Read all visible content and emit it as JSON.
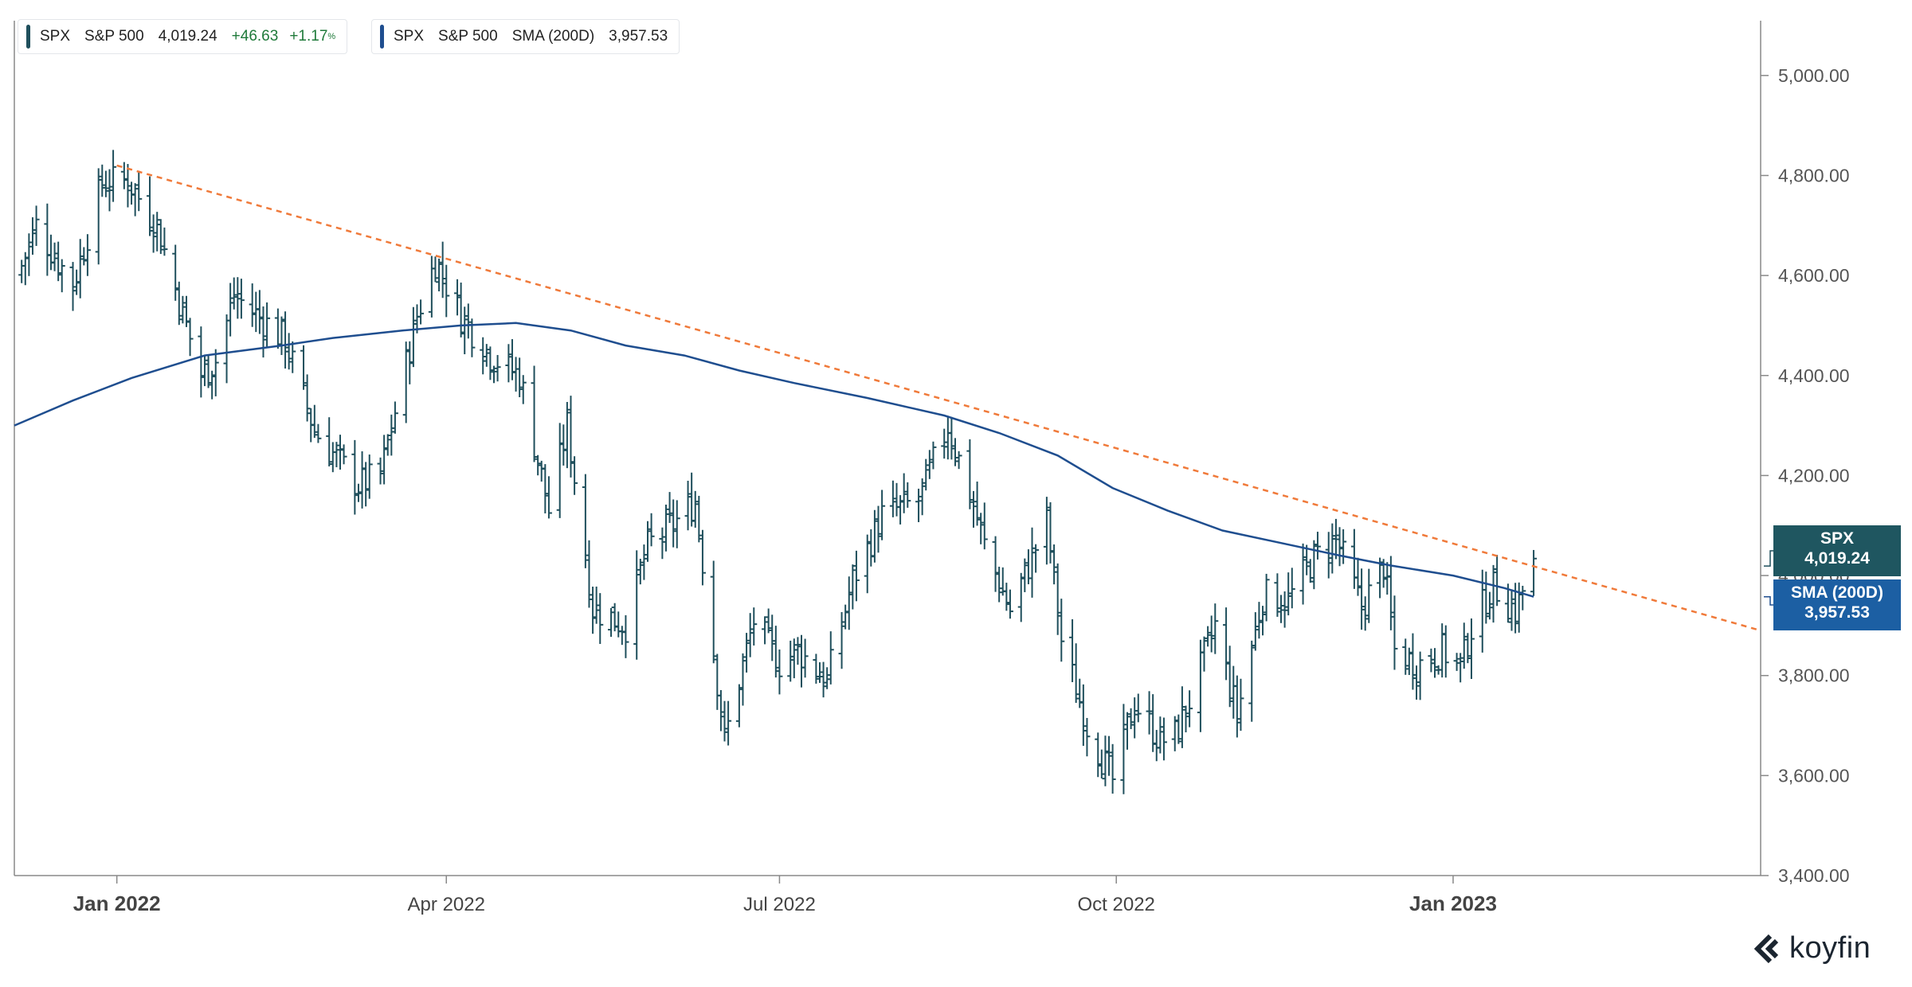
{
  "legend": {
    "primary": {
      "ticker": "SPX",
      "name": "S&P 500",
      "price": "4,019.24",
      "change": "+46.63",
      "change_pct": "+1.17",
      "pct_sign": "%"
    },
    "sma": {
      "ticker": "SPX",
      "name": "S&P 500",
      "indicator": "SMA (200D)",
      "value": "3,957.53"
    }
  },
  "tags": {
    "price": {
      "label": "SPX",
      "value": "4,019.24",
      "color": "#1f5660"
    },
    "sma": {
      "label": "SMA (200D)",
      "value": "3,957.53",
      "color": "#1c5fa3"
    }
  },
  "logo": {
    "text": "koyfin"
  },
  "chart_data": {
    "type": "line",
    "title": "",
    "x_axis": {
      "range": [
        "2021-12-04",
        "2023-03-26"
      ],
      "ticks": [
        {
          "date": "2022-01-01",
          "label": "Jan 2022",
          "bold": true
        },
        {
          "date": "2022-04-01",
          "label": "Apr 2022",
          "bold": false
        },
        {
          "date": "2022-07-01",
          "label": "Jul 2022",
          "bold": false
        },
        {
          "date": "2022-10-01",
          "label": "Oct 2022",
          "bold": false
        },
        {
          "date": "2023-01-01",
          "label": "Jan 2023",
          "bold": true
        }
      ]
    },
    "y_axis": {
      "range": [
        3400,
        5100
      ],
      "ticks": [
        {
          "value": 3400,
          "label": "3,400.00"
        },
        {
          "value": 3600,
          "label": "3,600.00"
        },
        {
          "value": 3800,
          "label": "3,800.00"
        },
        {
          "value": 4000,
          "label": "4,000.00"
        },
        {
          "value": 4200,
          "label": "4,200.00"
        },
        {
          "value": 4400,
          "label": "4,400.00"
        },
        {
          "value": 4600,
          "label": "4,600.00"
        },
        {
          "value": 4800,
          "label": "4,800.00"
        },
        {
          "value": 5000,
          "label": "5,000.00"
        }
      ],
      "position": "right"
    },
    "colors": {
      "price": "#1f4f5c",
      "sma": "#1f4e8f",
      "trendline": "#f07a3a",
      "axis": "#888888"
    },
    "series": [
      {
        "name": "SPX",
        "style": "ohlc-bars",
        "anchors": [
          [
            "2021-12-05",
            4600
          ],
          [
            "2021-12-10",
            4700
          ],
          [
            "2021-12-20",
            4580
          ],
          [
            "2021-12-28",
            4785
          ],
          [
            "2022-01-04",
            4790
          ],
          [
            "2022-01-12",
            4700
          ],
          [
            "2022-01-24",
            4400
          ],
          [
            "2022-01-28",
            4430
          ],
          [
            "2022-02-02",
            4560
          ],
          [
            "2022-02-10",
            4510
          ],
          [
            "2022-02-16",
            4470
          ],
          [
            "2022-02-24",
            4290
          ],
          [
            "2022-03-08",
            4180
          ],
          [
            "2022-03-14",
            4200
          ],
          [
            "2022-03-24",
            4520
          ],
          [
            "2022-03-29",
            4630
          ],
          [
            "2022-04-05",
            4520
          ],
          [
            "2022-04-13",
            4440
          ],
          [
            "2022-04-21",
            4400
          ],
          [
            "2022-04-29",
            4130
          ],
          [
            "2022-05-04",
            4300
          ],
          [
            "2022-05-11",
            3935
          ],
          [
            "2022-05-20",
            3900
          ],
          [
            "2022-05-26",
            4060
          ],
          [
            "2022-06-03",
            4110
          ],
          [
            "2022-06-08",
            4150
          ],
          [
            "2022-06-16",
            3670
          ],
          [
            "2022-06-24",
            3910
          ],
          [
            "2022-07-01",
            3825
          ],
          [
            "2022-07-06",
            3850
          ],
          [
            "2022-07-14",
            3790
          ],
          [
            "2022-07-21",
            3990
          ],
          [
            "2022-07-29",
            4120
          ],
          [
            "2022-08-08",
            4150
          ],
          [
            "2022-08-16",
            4300
          ],
          [
            "2022-08-23",
            4140
          ],
          [
            "2022-08-26",
            4060
          ],
          [
            "2022-09-02",
            3930
          ],
          [
            "2022-09-12",
            4110
          ],
          [
            "2022-09-16",
            3870
          ],
          [
            "2022-09-23",
            3700
          ],
          [
            "2022-09-30",
            3590
          ],
          [
            "2022-10-06",
            3745
          ],
          [
            "2022-10-13",
            3670
          ],
          [
            "2022-10-17",
            3680
          ],
          [
            "2022-10-21",
            3750
          ],
          [
            "2022-10-28",
            3900
          ],
          [
            "2022-11-03",
            3720
          ],
          [
            "2022-11-10",
            3960
          ],
          [
            "2022-11-17",
            3950
          ],
          [
            "2022-11-23",
            4025
          ],
          [
            "2022-11-30",
            4075
          ],
          [
            "2022-12-07",
            3935
          ],
          [
            "2022-12-13",
            4020
          ],
          [
            "2022-12-16",
            3850
          ],
          [
            "2022-12-22",
            3820
          ],
          [
            "2022-12-29",
            3850
          ],
          [
            "2023-01-03",
            3820
          ],
          [
            "2023-01-06",
            3895
          ],
          [
            "2023-01-12",
            3980
          ],
          [
            "2023-01-18",
            3930
          ],
          [
            "2023-01-20",
            3970
          ],
          [
            "2023-01-23",
            4019
          ]
        ]
      },
      {
        "name": "SMA (200D)",
        "style": "line",
        "points": [
          [
            "2021-12-04",
            4300
          ],
          [
            "2021-12-20",
            4350
          ],
          [
            "2022-01-05",
            4395
          ],
          [
            "2022-01-25",
            4440
          ],
          [
            "2022-02-15",
            4460
          ],
          [
            "2022-03-01",
            4475
          ],
          [
            "2022-03-20",
            4490
          ],
          [
            "2022-04-05",
            4500
          ],
          [
            "2022-04-20",
            4505
          ],
          [
            "2022-05-05",
            4490
          ],
          [
            "2022-05-20",
            4460
          ],
          [
            "2022-06-05",
            4440
          ],
          [
            "2022-06-20",
            4410
          ],
          [
            "2022-07-05",
            4385
          ],
          [
            "2022-07-25",
            4355
          ],
          [
            "2022-08-15",
            4320
          ],
          [
            "2022-08-30",
            4285
          ],
          [
            "2022-09-15",
            4240
          ],
          [
            "2022-09-30",
            4175
          ],
          [
            "2022-10-15",
            4130
          ],
          [
            "2022-10-30",
            4090
          ],
          [
            "2022-11-15",
            4065
          ],
          [
            "2022-12-01",
            4040
          ],
          [
            "2022-12-15",
            4020
          ],
          [
            "2023-01-01",
            4000
          ],
          [
            "2023-01-15",
            3975
          ],
          [
            "2023-01-23",
            3957.53
          ]
        ]
      },
      {
        "name": "Trendline",
        "style": "dashed",
        "points": [
          [
            "2022-01-01",
            4820
          ],
          [
            "2023-03-26",
            3890
          ]
        ]
      }
    ]
  }
}
